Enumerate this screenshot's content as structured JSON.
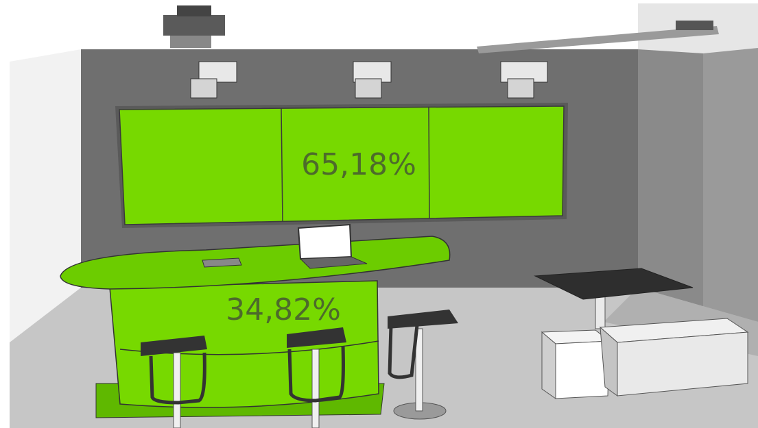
{
  "labels": {
    "wall_screen": "65,18%",
    "counter": "34,82%"
  }
}
